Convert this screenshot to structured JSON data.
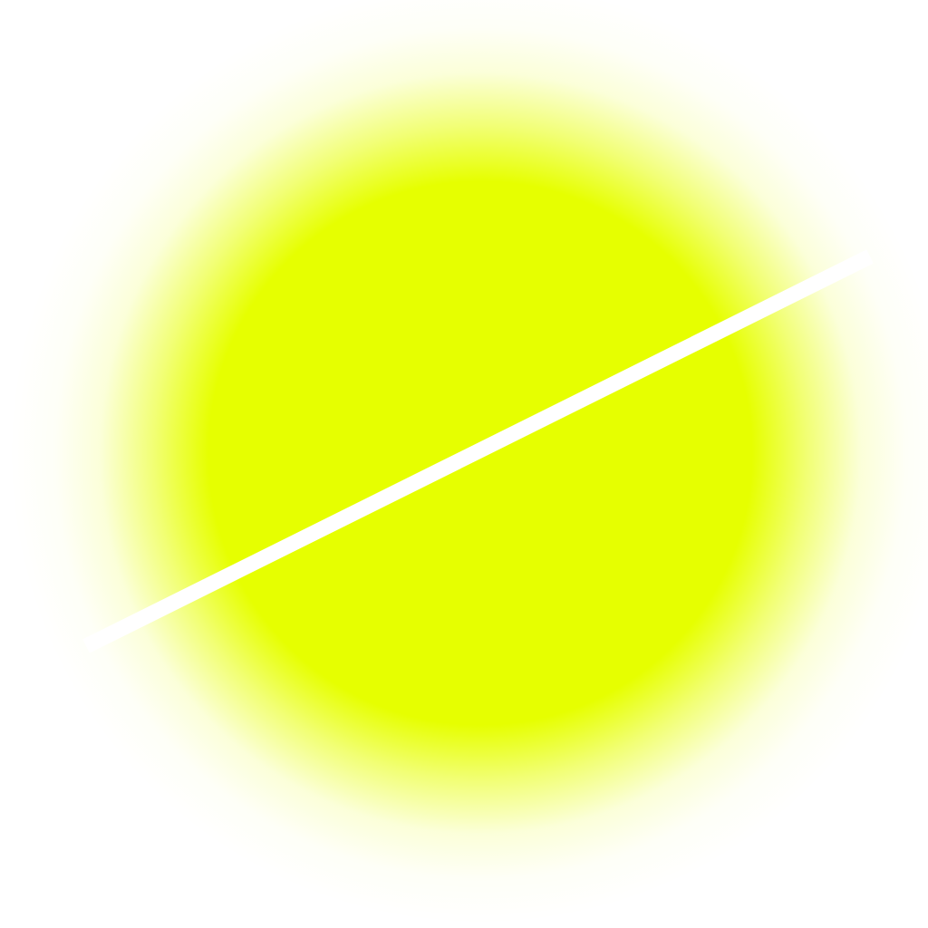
{
  "artwork": {
    "glow_color": "#e6ff00",
    "background_color": "#ffffff",
    "stripe_color": "#ffffff"
  }
}
